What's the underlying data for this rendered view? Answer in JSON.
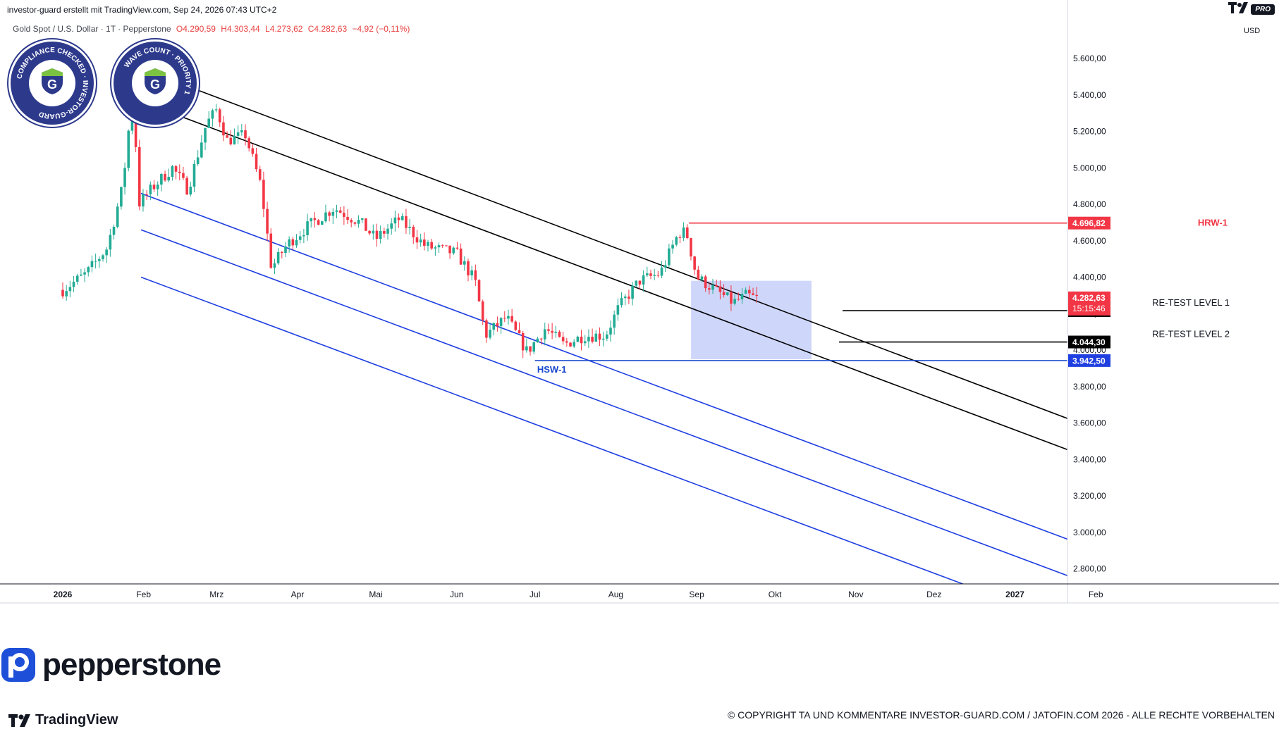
{
  "header": {
    "author_line": "investor-guard erstellt mit TradingView.com, Sep 24, 2026 07:43 UTC+2",
    "symbol": "Gold Spot / U.S. Dollar · 1T · Pepperstone",
    "open": "O4.290,59",
    "high": "H4.303,44",
    "low": "L4.273,62",
    "close": "C4.282,63",
    "change": "−4,92 (−0,11%)",
    "currency": "USD",
    "pro_badge": "PRO"
  },
  "badges": [
    {
      "text": "COMPLIANCE CHECKED · INVESTOR-GUARD",
      "icon": "shield-g-icon"
    },
    {
      "text": "WAVE COUNT · PRIORITY 1",
      "icon": "shield-g-icon"
    }
  ],
  "branding": {
    "pepperstone": "pepperstone",
    "tradingview": "TradingView",
    "copyright": "© COPYRIGHT TA UND KOMMENTARE INVESTOR-GUARD.COM / JATOFIN.COM 2026 - ALLE RECHTE VORBEHALTEN"
  },
  "colors": {
    "up": "#22ab94",
    "down": "#f23645",
    "resistance": "#f23645",
    "support": "#1848cc",
    "channel_black": "#000000",
    "channel_blue": "#1f3fe0",
    "zone": "#c9d3fa"
  },
  "chart_data": {
    "type": "candlestick",
    "y_axis_ticks": [
      "5.600,00",
      "5.400,00",
      "5.200,00",
      "5.000,00",
      "4.800,00",
      "4.600,00",
      "4.400,00",
      "4.200,00",
      "4.000,00",
      "3.800,00",
      "3.600,00",
      "3.400,00",
      "3.200,00",
      "3.000,00",
      "2.800,00"
    ],
    "ylim": [
      2700,
      5700
    ],
    "x_axis_labels": [
      "2026",
      "Feb",
      "Mrz",
      "Apr",
      "Mai",
      "Jun",
      "Jul",
      "Aug",
      "Sep",
      "Okt",
      "Nov",
      "Dez",
      "2027",
      "Feb"
    ],
    "xlim": [
      "2026-01-01",
      "2027-02-28"
    ],
    "price_path": [
      {
        "date": "2026-01-01",
        "close": 4330
      },
      {
        "date": "2026-01-10",
        "close": 4420
      },
      {
        "date": "2026-01-18",
        "close": 4560
      },
      {
        "date": "2026-01-24",
        "close": 4900
      },
      {
        "date": "2026-01-28",
        "close": 5450
      },
      {
        "date": "2026-01-30",
        "close": 4800
      },
      {
        "date": "2026-02-05",
        "close": 4900
      },
      {
        "date": "2026-02-12",
        "close": 5000
      },
      {
        "date": "2026-02-18",
        "close": 4880
      },
      {
        "date": "2026-02-25",
        "close": 5240
      },
      {
        "date": "2026-03-01",
        "close": 5320
      },
      {
        "date": "2026-03-05",
        "close": 5150
      },
      {
        "date": "2026-03-12",
        "close": 5180
      },
      {
        "date": "2026-03-18",
        "close": 4900
      },
      {
        "date": "2026-03-22",
        "close": 4450
      },
      {
        "date": "2026-03-28",
        "close": 4580
      },
      {
        "date": "2026-04-05",
        "close": 4680
      },
      {
        "date": "2026-04-15",
        "close": 4780
      },
      {
        "date": "2026-04-25",
        "close": 4700
      },
      {
        "date": "2026-05-01",
        "close": 4610
      },
      {
        "date": "2026-05-10",
        "close": 4720
      },
      {
        "date": "2026-05-20",
        "close": 4570
      },
      {
        "date": "2026-06-01",
        "close": 4530
      },
      {
        "date": "2026-06-08",
        "close": 4380
      },
      {
        "date": "2026-06-12",
        "close": 4080
      },
      {
        "date": "2026-06-20",
        "close": 4180
      },
      {
        "date": "2026-06-28",
        "close": 3990
      },
      {
        "date": "2026-07-05",
        "close": 4120
      },
      {
        "date": "2026-07-12",
        "close": 4030
      },
      {
        "date": "2026-07-20",
        "close": 4080
      },
      {
        "date": "2026-07-28",
        "close": 4080
      },
      {
        "date": "2026-08-02",
        "close": 4230
      },
      {
        "date": "2026-08-10",
        "close": 4380
      },
      {
        "date": "2026-08-18",
        "close": 4420
      },
      {
        "date": "2026-08-25",
        "close": 4640
      },
      {
        "date": "2026-08-28",
        "close": 4650
      },
      {
        "date": "2026-09-01",
        "close": 4400
      },
      {
        "date": "2026-09-08",
        "close": 4330
      },
      {
        "date": "2026-09-15",
        "close": 4260
      },
      {
        "date": "2026-09-20",
        "close": 4300
      },
      {
        "date": "2026-09-24",
        "close": 4282.63
      }
    ],
    "channels": [
      {
        "name": "black-upper",
        "color": "black",
        "from": {
          "date": "2026-01-28",
          "price": 5560
        },
        "to": {
          "date": "2027-02-28",
          "price": 3420
        }
      },
      {
        "name": "black-lower",
        "color": "black",
        "from": {
          "date": "2026-01-28",
          "price": 5380
        },
        "to": {
          "date": "2027-02-28",
          "price": 3250
        }
      },
      {
        "name": "blue-upper",
        "color": "blue",
        "from": {
          "date": "2026-01-31",
          "price": 4860
        },
        "to": {
          "date": "2027-02-28",
          "price": 2760
        }
      },
      {
        "name": "blue-middle",
        "color": "blue",
        "from": {
          "date": "2026-01-31",
          "price": 4660
        },
        "to": {
          "date": "2027-02-28",
          "price": 2560
        }
      },
      {
        "name": "blue-lower",
        "color": "blue",
        "from": {
          "date": "2026-01-31",
          "price": 4400
        },
        "to": {
          "date": "2027-02-28",
          "price": 2300
        }
      }
    ],
    "levels": [
      {
        "label": "HRW-1",
        "price": 4696.82,
        "price_label": "4.696,82",
        "from": "2026-08-29",
        "color": "red"
      },
      {
        "label": "RE-TEST LEVEL 1",
        "price": 4216.34,
        "price_label": "4.216,34",
        "from": "2026-09-24",
        "color": "black"
      },
      {
        "label": "RE-TEST LEVEL 2",
        "price": 4044.3,
        "price_label": "4.044,30",
        "from": "2026-09-24",
        "color": "black"
      },
      {
        "label": "HSW-1",
        "price": 3942.5,
        "price_label": "3.942,50",
        "from": "2026-07-01",
        "color": "blue"
      }
    ],
    "current_price": {
      "price": 4282.63,
      "label": "4.282,63",
      "countdown": "15:15:46"
    },
    "zone": {
      "from": "2026-09-01",
      "to": "2026-10-15",
      "top": 4380,
      "bottom": 3950
    }
  }
}
